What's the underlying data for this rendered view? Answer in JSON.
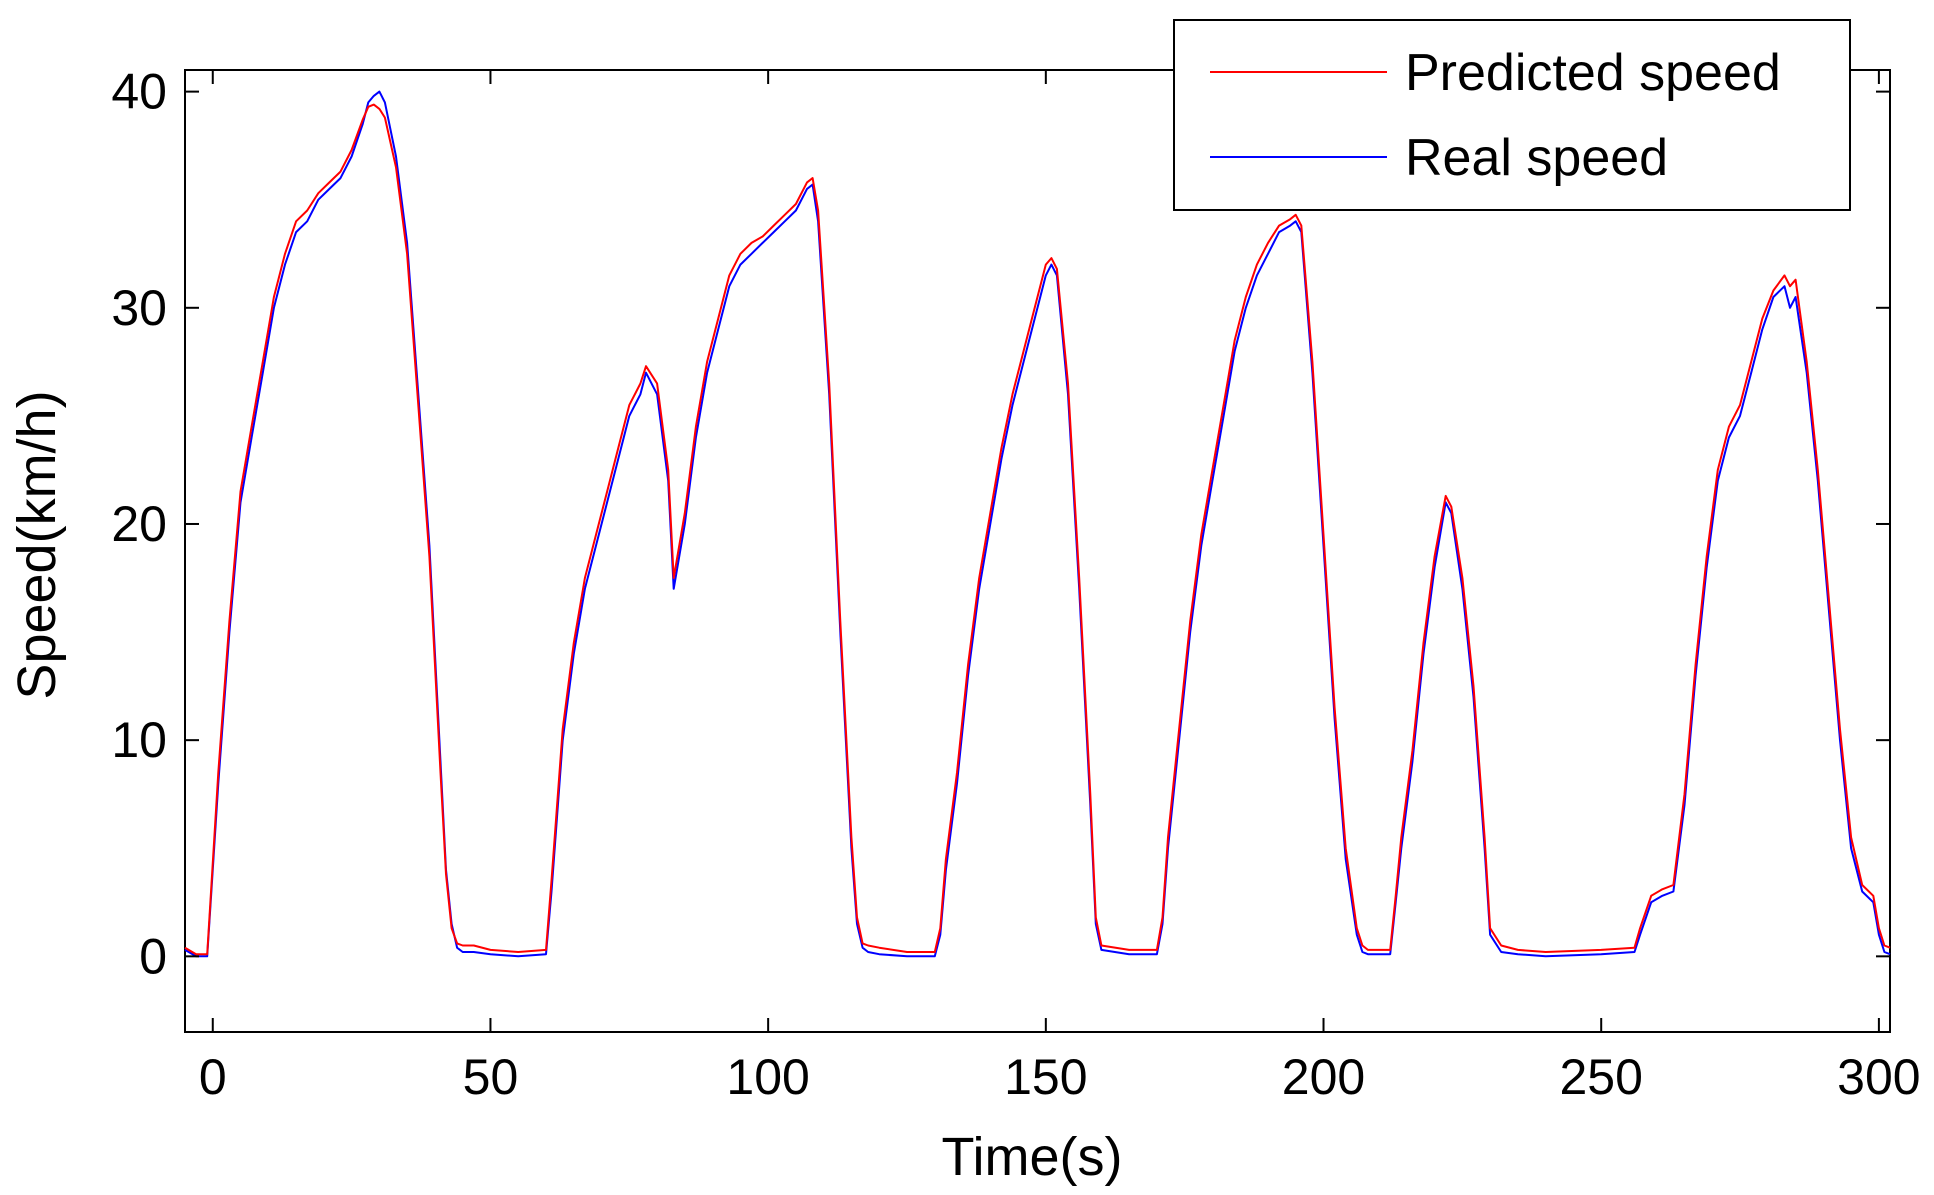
{
  "chart_data": {
    "type": "line",
    "title": "",
    "xlabel": "Time(s)",
    "ylabel": "Speed(km/h)",
    "xlim": [
      -5,
      302
    ],
    "ylim": [
      -3.5,
      41
    ],
    "xticks": [
      0,
      50,
      100,
      150,
      200,
      250,
      300
    ],
    "xtick_labels": [
      "0",
      "50",
      "100",
      "150",
      "200",
      "250",
      "300"
    ],
    "yticks": [
      0,
      10,
      20,
      30,
      40
    ],
    "ytick_labels": [
      "0",
      "10",
      "20",
      "30",
      "40"
    ],
    "grid": false,
    "legend": {
      "position": "top-right",
      "entries": [
        {
          "label": "Predicted speed",
          "color": "#ff0000"
        },
        {
          "label": "Real speed",
          "color": "#0000ff"
        }
      ]
    },
    "series": [
      {
        "name": "Real speed",
        "color": "#0000ff",
        "x": [
          -5,
          -3,
          -1,
          1,
          3,
          5,
          7,
          9,
          11,
          13,
          15,
          17,
          19,
          21,
          23,
          25,
          27,
          28,
          29,
          30,
          31,
          33,
          35,
          37,
          39,
          41,
          42,
          43,
          44,
          45,
          47,
          50,
          55,
          60,
          61,
          63,
          65,
          67,
          69,
          71,
          73,
          75,
          77,
          78,
          80,
          82,
          83,
          85,
          87,
          89,
          91,
          93,
          95,
          97,
          99,
          101,
          103,
          105,
          107,
          108,
          109,
          111,
          113,
          115,
          116,
          117,
          118,
          120,
          125,
          130,
          131,
          132,
          134,
          136,
          138,
          140,
          142,
          144,
          146,
          148,
          150,
          151,
          152,
          154,
          156,
          158,
          159,
          160,
          165,
          170,
          171,
          172,
          174,
          176,
          178,
          180,
          182,
          184,
          186,
          188,
          190,
          192,
          194,
          195,
          196,
          198,
          200,
          202,
          204,
          206,
          207,
          208,
          210,
          212,
          213,
          214,
          216,
          218,
          220,
          222,
          223,
          225,
          227,
          229,
          230,
          232,
          235,
          240,
          250,
          256,
          257,
          259,
          261,
          263,
          265,
          267,
          269,
          271,
          273,
          275,
          277,
          279,
          281,
          283,
          284,
          285,
          287,
          289,
          291,
          293,
          295,
          297,
          299,
          300,
          301,
          302
        ],
        "y": [
          0.3,
          0,
          0,
          8,
          15,
          21,
          24,
          27,
          30,
          32,
          33.5,
          34,
          35,
          35.5,
          36,
          37,
          38.5,
          39.5,
          39.8,
          40,
          39.5,
          37,
          33,
          26,
          19,
          9,
          4,
          1.5,
          0.4,
          0.2,
          0.2,
          0.1,
          0,
          0.1,
          3,
          10,
          14,
          17,
          19,
          21,
          23,
          25,
          26,
          27,
          26,
          22,
          17,
          20,
          24,
          27,
          29,
          31,
          32,
          32.5,
          33,
          33.5,
          34,
          34.5,
          35.5,
          35.7,
          34,
          26,
          15,
          5,
          1.5,
          0.4,
          0.2,
          0.1,
          0,
          0,
          1,
          4,
          8,
          13,
          17,
          20,
          23,
          25.5,
          27.5,
          29.5,
          31.5,
          32,
          31.5,
          26,
          17,
          7,
          1.5,
          0.3,
          0.1,
          0.1,
          1.5,
          5,
          10,
          15,
          19,
          22,
          25,
          28,
          30,
          31.5,
          32.5,
          33.5,
          33.8,
          34,
          33.5,
          27,
          19,
          11,
          4.5,
          1,
          0.2,
          0.1,
          0.1,
          0.1,
          2.5,
          5,
          9,
          14,
          18,
          21,
          20.5,
          17,
          12,
          5,
          1,
          0.2,
          0.1,
          0,
          0.1,
          0.2,
          1,
          2.5,
          2.8,
          3,
          7,
          13,
          18,
          22,
          24,
          25,
          27,
          29,
          30.5,
          31,
          30,
          30.5,
          27,
          22,
          16,
          10,
          5,
          3,
          2.5,
          1,
          0.2,
          0.1
        ]
      },
      {
        "name": "Predicted speed",
        "color": "#ff0000",
        "x": [
          -5,
          -3,
          -1,
          1,
          3,
          5,
          7,
          9,
          11,
          13,
          15,
          17,
          19,
          21,
          23,
          25,
          27,
          28,
          29,
          30,
          31,
          33,
          35,
          37,
          39,
          41,
          42,
          43,
          44,
          45,
          47,
          50,
          55,
          60,
          61,
          63,
          65,
          67,
          69,
          71,
          73,
          75,
          77,
          78,
          80,
          82,
          83,
          85,
          87,
          89,
          91,
          93,
          95,
          97,
          99,
          101,
          103,
          105,
          107,
          108,
          109,
          111,
          113,
          115,
          116,
          117,
          118,
          120,
          125,
          130,
          131,
          132,
          134,
          136,
          138,
          140,
          142,
          144,
          146,
          148,
          150,
          151,
          152,
          154,
          156,
          158,
          159,
          160,
          165,
          170,
          171,
          172,
          174,
          176,
          178,
          180,
          182,
          184,
          186,
          188,
          190,
          192,
          194,
          195,
          196,
          198,
          200,
          202,
          204,
          206,
          207,
          208,
          210,
          212,
          213,
          214,
          216,
          218,
          220,
          222,
          223,
          225,
          227,
          229,
          230,
          232,
          235,
          240,
          250,
          256,
          257,
          259,
          261,
          263,
          265,
          267,
          269,
          271,
          273,
          275,
          277,
          279,
          281,
          283,
          284,
          285,
          287,
          289,
          291,
          293,
          295,
          297,
          299,
          300,
          301,
          302
        ],
        "y": [
          0.4,
          0.1,
          0.1,
          8.5,
          15.5,
          21.5,
          24.5,
          27.5,
          30.5,
          32.5,
          34,
          34.5,
          35.3,
          35.8,
          36.3,
          37.3,
          38.7,
          39.3,
          39.4,
          39.2,
          38.8,
          36.5,
          32.5,
          25.5,
          18.5,
          8.5,
          3.8,
          1.3,
          0.6,
          0.5,
          0.5,
          0.3,
          0.2,
          0.3,
          3.5,
          10.5,
          14.5,
          17.5,
          19.5,
          21.5,
          23.5,
          25.5,
          26.5,
          27.3,
          26.5,
          22.5,
          17.5,
          20.5,
          24.5,
          27.5,
          29.5,
          31.5,
          32.5,
          33,
          33.3,
          33.8,
          34.3,
          34.8,
          35.8,
          36,
          34.5,
          26.5,
          15.5,
          5.5,
          1.8,
          0.6,
          0.5,
          0.4,
          0.2,
          0.2,
          1.3,
          4.5,
          8.5,
          13.5,
          17.5,
          20.5,
          23.5,
          26,
          28,
          30,
          32,
          32.3,
          31.8,
          26.5,
          17.5,
          7.5,
          1.8,
          0.5,
          0.3,
          0.3,
          1.8,
          5.5,
          10.5,
          15.5,
          19.5,
          22.5,
          25.5,
          28.5,
          30.5,
          32,
          33,
          33.8,
          34.1,
          34.3,
          33.8,
          27.5,
          19.5,
          11.5,
          5,
          1.3,
          0.5,
          0.3,
          0.3,
          0.3,
          2.8,
          5.5,
          9.5,
          14.5,
          18.5,
          21.3,
          20.8,
          17.5,
          12.5,
          5.5,
          1.3,
          0.5,
          0.3,
          0.2,
          0.3,
          0.4,
          1.3,
          2.8,
          3.1,
          3.3,
          7.5,
          13.5,
          18.5,
          22.5,
          24.5,
          25.5,
          27.5,
          29.5,
          30.8,
          31.5,
          31,
          31.3,
          27.5,
          22.5,
          16.5,
          10.5,
          5.5,
          3.3,
          2.8,
          1.3,
          0.5,
          0.4
        ]
      }
    ]
  }
}
